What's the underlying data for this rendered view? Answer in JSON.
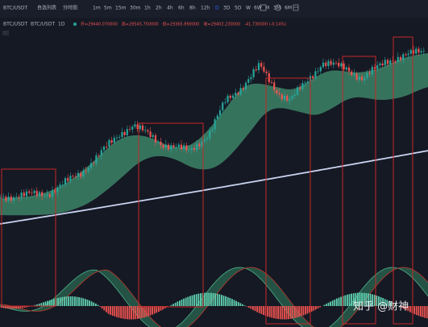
{
  "header": {
    "symbol": "BTC/USDT",
    "tabs": [
      "自选列表",
      "分时图"
    ],
    "intervals": [
      "1m",
      "5m",
      "15m",
      "30m",
      "1h",
      "2h",
      "4h",
      "6h",
      "8h",
      "12h",
      "D",
      "3D",
      "5D",
      "W",
      "6W",
      "M",
      "3M",
      "6M"
    ]
  },
  "legend": {
    "symbol": "BTC/USDT",
    "pair": "BTC/USDT",
    "interval": "1D",
    "ohlc": [
      "开=29440.070000",
      "高=29545.750000",
      "低=29365.890000",
      "收=29403.230000",
      "-41.730000 (-0.14%)"
    ]
  },
  "watermark": "知乎 @财神"
}
